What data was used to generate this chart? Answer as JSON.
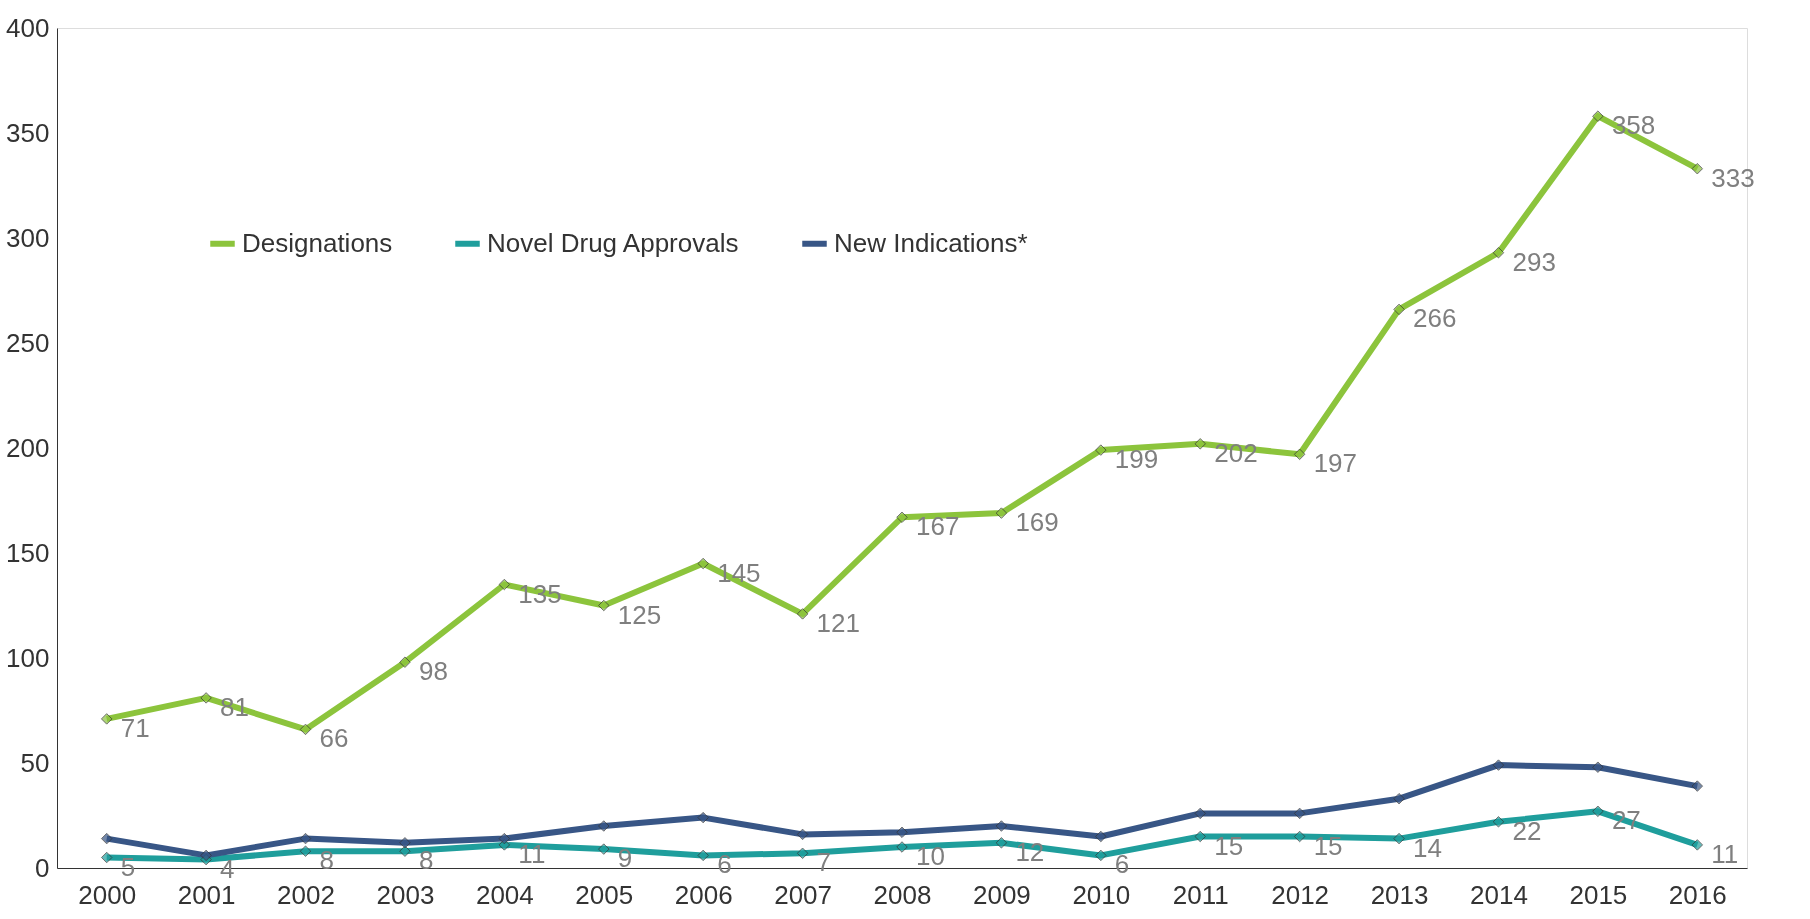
{
  "chart_data": {
    "type": "line",
    "categories": [
      "2000",
      "2001",
      "2002",
      "2003",
      "2004",
      "2005",
      "2006",
      "2007",
      "2008",
      "2009",
      "2010",
      "2011",
      "2012",
      "2013",
      "2014",
      "2015",
      "2016"
    ],
    "series": [
      {
        "name": "Designations",
        "color": "#8cc43c",
        "values": [
          71,
          81,
          66,
          98,
          135,
          125,
          145,
          121,
          167,
          169,
          199,
          202,
          197,
          266,
          293,
          358,
          333
        ],
        "value_labels": [
          "71",
          "81",
          "66",
          "98",
          "135",
          "125",
          "145",
          "121",
          "167",
          "169",
          "199",
          "202",
          "197",
          "266",
          "293",
          "358",
          "333"
        ]
      },
      {
        "name": "Novel Drug Approvals",
        "color": "#1f9e9c",
        "values": [
          5,
          4,
          8,
          8,
          11,
          9,
          6,
          7,
          10,
          12,
          6,
          15,
          15,
          14,
          22,
          27,
          11
        ],
        "value_labels": [
          "5",
          "4",
          "8",
          "8",
          "11",
          "9",
          "6",
          "7",
          "10",
          "12",
          "6",
          "15",
          "15",
          "14",
          "22",
          "27",
          "11"
        ]
      },
      {
        "name": "New Indications*",
        "color": "#385686",
        "values": [
          14,
          6,
          14,
          12,
          14,
          20,
          24,
          16,
          17,
          20,
          15,
          26,
          26,
          33,
          49,
          48,
          39
        ]
      }
    ],
    "ylim": [
      0,
      400
    ],
    "yticks": [
      0,
      50,
      100,
      150,
      200,
      250,
      300,
      350,
      400
    ],
    "grid": false,
    "legend": "top",
    "marker": "diamond",
    "line_style": "solid"
  }
}
